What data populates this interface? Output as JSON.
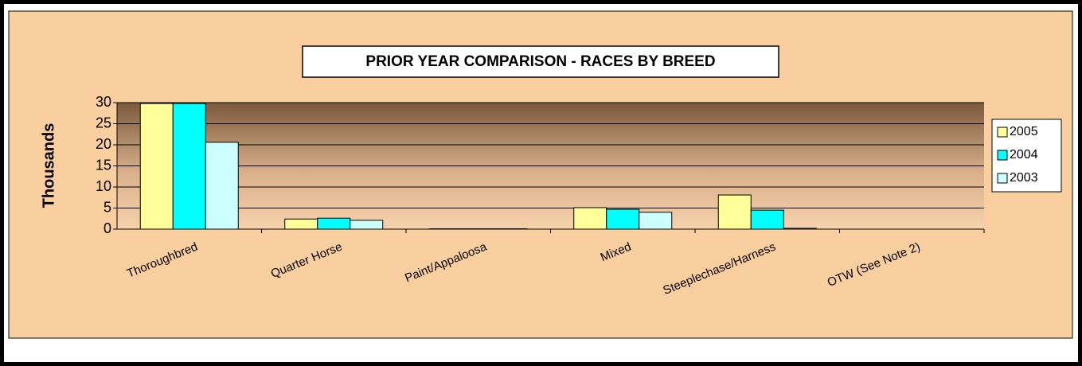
{
  "chart_data": {
    "type": "bar",
    "title": "PRIOR YEAR COMPARISON - RACES BY BREED",
    "y_label": "Thousands",
    "categories": [
      "Thoroughbred",
      "Quarter Horse",
      "Paint/Appaloosa",
      "Mixed",
      "Steeplechase/Harness",
      "OTW (See Note 2)"
    ],
    "series": [
      {
        "name": "2005",
        "color": "#FFFF99",
        "values": [
          29.8,
          2.4,
          0.1,
          5.1,
          8.1,
          0
        ]
      },
      {
        "name": "2004",
        "color": "#00FFFF",
        "values": [
          29.8,
          2.6,
          0.1,
          4.7,
          4.5,
          0
        ]
      },
      {
        "name": "2003",
        "color": "#CCFFFF",
        "values": [
          20.6,
          2.1,
          0.1,
          4.0,
          0.2,
          0
        ]
      }
    ],
    "ylim": [
      0,
      30
    ],
    "yticks": [
      0,
      5,
      10,
      15,
      20,
      25,
      30
    ],
    "grid": true,
    "legend": "right"
  }
}
